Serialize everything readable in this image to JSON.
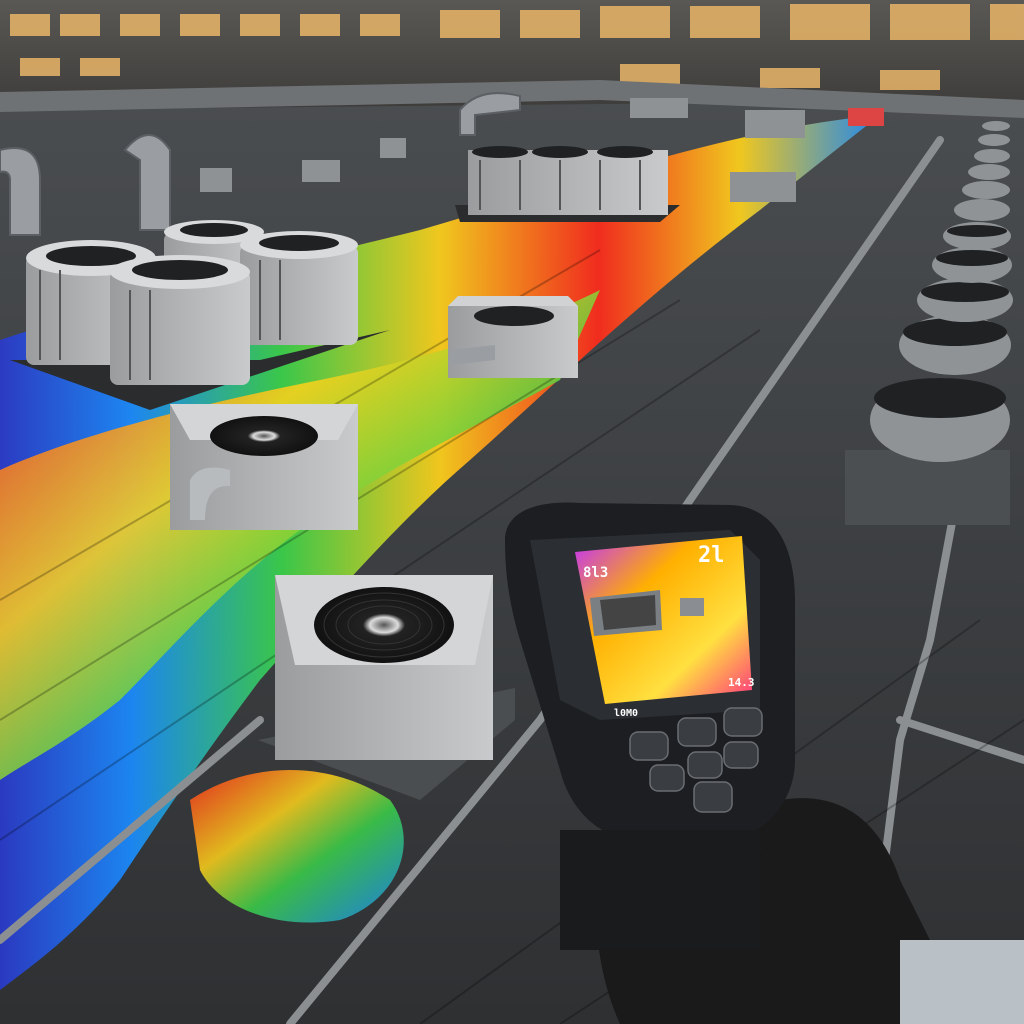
{
  "scene": {
    "subject": "rooftop-thermal-inspection",
    "colors": {
      "sky_building": "#4a4a48",
      "roof": "#3c3e40",
      "roof_light": "#6d7072",
      "thermal_hot": "#ff2a1a",
      "thermal_warm": "#ffd21a",
      "thermal_mid": "#3ad24a",
      "thermal_cool": "#1a8cff",
      "thermal_cold": "#2a3acc",
      "camera_body": "#1c1e21",
      "glove": "#1a1a1a"
    }
  },
  "thermal_camera": {
    "screen_top_right_reading": "2l",
    "screen_top_left_reading": "8l3",
    "screen_bottom_right_reading": "14.3",
    "screen_bottom_left_reading": "l0M0",
    "buttons": [
      "up",
      "menu",
      "left",
      "ok",
      "right",
      "back",
      "down"
    ]
  },
  "hvac_units": [
    {
      "id": "unit-cluster-left"
    },
    {
      "id": "unit-center-small"
    },
    {
      "id": "unit-mid-left"
    },
    {
      "id": "unit-foreground"
    },
    {
      "id": "unit-row-right"
    },
    {
      "id": "unit-cluster-far"
    }
  ]
}
